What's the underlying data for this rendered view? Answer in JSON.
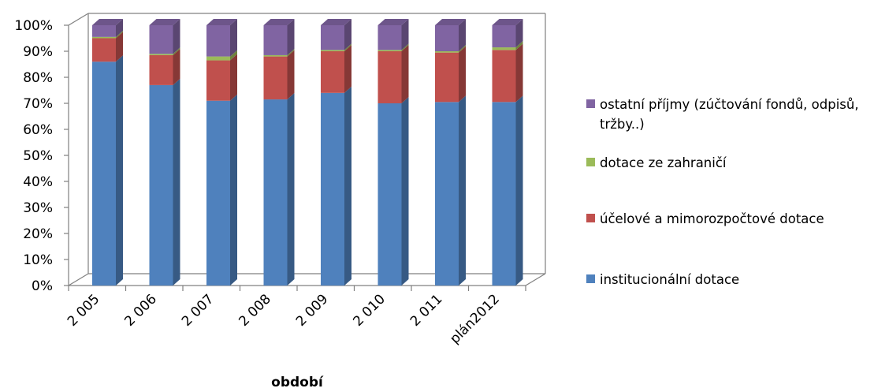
{
  "chart_data": {
    "type": "bar",
    "stacked": true,
    "percent": true,
    "xlabel": "období",
    "ylabel": "",
    "ylim": [
      0,
      100
    ],
    "y_ticks": [
      "0%",
      "10%",
      "20%",
      "30%",
      "40%",
      "50%",
      "60%",
      "70%",
      "80%",
      "90%",
      "100%"
    ],
    "categories": [
      "2 005",
      "2 006",
      "2 007",
      "2 008",
      "2 009",
      "2 010",
      "2 011",
      "plán2012"
    ],
    "series": [
      {
        "name": "institucionální dotace",
        "color": "#4F81BD",
        "values": [
          86,
          77,
          71,
          71.5,
          74,
          70,
          70.5,
          70.5
        ]
      },
      {
        "name": "účelové a mimorozpočtové dotace",
        "color": "#C0504D",
        "values": [
          9,
          11.5,
          15.5,
          16.5,
          16,
          20,
          19,
          20
        ]
      },
      {
        "name": "dotace ze zahraničí",
        "color": "#9BBB59",
        "values": [
          0.5,
          0.5,
          1.5,
          0.5,
          0.5,
          0.5,
          0.5,
          1
        ]
      },
      {
        "name": "ostatní příjmy (zúčtování fondů, odpisů, tržby..)",
        "color": "#8064A2",
        "values": [
          4.5,
          11,
          12,
          11.5,
          9.5,
          9.5,
          10,
          8.5
        ]
      }
    ],
    "legend_position": "right",
    "grid": false
  }
}
